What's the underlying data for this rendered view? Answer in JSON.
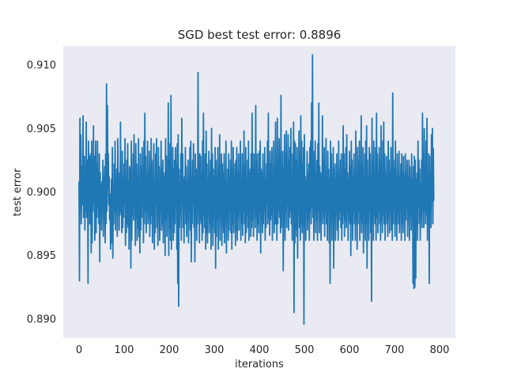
{
  "chart_data": {
    "type": "line",
    "title": "SGD best test error: 0.8896",
    "xlabel": "iterations",
    "ylabel": "test error",
    "xlim": [
      -35,
      835
    ],
    "ylim": [
      0.8885,
      0.9115
    ],
    "x_ticks": [
      0,
      100,
      200,
      300,
      400,
      500,
      600,
      700,
      800
    ],
    "x_tick_labels": [
      "0",
      "100",
      "200",
      "300",
      "400",
      "500",
      "600",
      "700",
      "800"
    ],
    "y_ticks": [
      0.89,
      0.895,
      0.9,
      0.905,
      0.91
    ],
    "y_tick_labels": [
      "0.890",
      "0.895",
      "0.900",
      "0.905",
      "0.910"
    ],
    "grid": false,
    "background": "#eaeaf2",
    "series": [
      {
        "color": "#1f77b4",
        "x_start": 0,
        "x_step": 1,
        "values": [
          0.9008,
          0.893,
          0.9058,
          0.8985,
          0.9045,
          0.8975,
          0.902,
          0.899,
          0.9012,
          0.906,
          0.898,
          0.9,
          0.9028,
          0.897,
          0.9016,
          0.8985,
          0.9055,
          0.898,
          0.9005,
          0.9025,
          0.8928,
          0.904,
          0.8995,
          0.9028,
          0.8975,
          0.901,
          0.903,
          0.8952,
          0.904,
          0.896,
          0.9025,
          0.8985,
          0.9052,
          0.8992,
          0.9028,
          0.8962,
          0.8998,
          0.904,
          0.8968,
          0.9022,
          0.898,
          0.904,
          0.8988,
          0.901,
          0.8975,
          0.903,
          0.8945,
          0.9015,
          0.8982,
          0.9005,
          0.897,
          0.9008,
          0.899,
          0.9025,
          0.8965,
          0.9012,
          0.8995,
          0.902,
          0.896,
          0.903,
          0.8975,
          0.9085,
          0.8985,
          0.9068,
          0.9002,
          0.903,
          0.899,
          0.9012,
          0.8978,
          0.8998,
          0.8955,
          0.898,
          0.901,
          0.896,
          0.9035,
          0.8948,
          0.9002,
          0.8975,
          0.9022,
          0.8985,
          0.904,
          0.897,
          0.901,
          0.899,
          0.9018,
          0.8965,
          0.9042,
          0.8995,
          0.9008,
          0.897,
          0.9015,
          0.8982,
          0.9055,
          0.8985,
          0.9002,
          0.8968,
          0.9032,
          0.8972,
          0.901,
          0.898,
          0.9022,
          0.8992,
          0.9042,
          0.8958,
          0.901,
          0.8968,
          0.9025,
          0.8975,
          0.9038,
          0.8972,
          0.9008,
          0.8955,
          0.902,
          0.8972,
          0.9018,
          0.894,
          0.904,
          0.8962,
          0.901,
          0.8982,
          0.903,
          0.8978,
          0.9045,
          0.8992,
          0.9008,
          0.8958,
          0.9038,
          0.898,
          0.9022,
          0.8962,
          0.9012,
          0.8972,
          0.9042,
          0.8965,
          0.9,
          0.8952,
          0.903,
          0.897,
          0.902,
          0.898,
          0.9035,
          0.8995,
          0.9015,
          0.896,
          0.904,
          0.8975,
          0.9062,
          0.8985,
          0.9028,
          0.8968,
          0.9012,
          0.8985,
          0.904,
          0.8975,
          0.9008,
          0.898,
          0.9032,
          0.8965,
          0.902,
          0.8975,
          0.9042,
          0.8982,
          0.9025,
          0.896,
          0.901,
          0.8998,
          0.9038,
          0.8955,
          0.9002,
          0.8968,
          0.903,
          0.899,
          0.9042,
          0.8972,
          0.901,
          0.8958,
          0.9035,
          0.898,
          0.902,
          0.8962,
          0.9008,
          0.8985,
          0.904,
          0.897,
          0.9018,
          0.8975,
          0.9025,
          0.896,
          0.9012,
          0.8982,
          0.9015,
          0.895,
          0.9042,
          0.8978,
          0.9028,
          0.8965,
          0.901,
          0.8985,
          0.907,
          0.895,
          0.9025,
          0.8972,
          0.9038,
          0.8962,
          0.9076,
          0.8955,
          0.9012,
          0.8978,
          0.9035,
          0.8962,
          0.9018,
          0.8968,
          0.9025,
          0.8975,
          0.9035,
          0.899,
          0.9022,
          0.8955,
          0.9038,
          0.8928,
          0.9045,
          0.891,
          0.9018,
          0.8972,
          0.9002,
          0.8985,
          0.903,
          0.8962,
          0.9058,
          0.8992,
          0.903,
          0.8972,
          0.901,
          0.896,
          0.9012,
          0.8985,
          0.9035,
          0.8975,
          0.902,
          0.8965,
          0.9008,
          0.8978,
          0.9025,
          0.896,
          0.901,
          0.8985,
          0.9035,
          0.897,
          0.904,
          0.8945,
          0.9012,
          0.8975,
          0.9025,
          0.899,
          0.9038,
          0.8972,
          0.901,
          0.8945,
          0.903,
          0.8985,
          0.9018,
          0.8962,
          0.9008,
          0.8975,
          0.9094,
          0.8985,
          0.9015,
          0.896,
          0.903,
          0.8978,
          0.9028,
          0.8975,
          0.9015,
          0.8962,
          0.904,
          0.8968,
          0.9062,
          0.8982,
          0.9008,
          0.8972,
          0.903,
          0.8955,
          0.9048,
          0.8968,
          0.9022,
          0.896,
          0.901,
          0.8985,
          0.9032,
          0.8968,
          0.9015,
          0.8975,
          0.9025,
          0.8955,
          0.905,
          0.8972,
          0.903,
          0.8958,
          0.9018,
          0.8982,
          0.9012,
          0.8968,
          0.9035,
          0.894,
          0.9025,
          0.8965,
          0.9012,
          0.8978,
          0.9035,
          0.8955,
          0.902,
          0.898,
          0.9045,
          0.8962,
          0.9008,
          0.899,
          0.903,
          0.8958,
          0.9022,
          0.8972,
          0.9015,
          0.8968,
          0.903,
          0.896,
          0.901,
          0.8975,
          0.904,
          0.8952,
          0.9008,
          0.898,
          0.9018,
          0.8962,
          0.903,
          0.897,
          0.9012,
          0.8985,
          0.9025,
          0.8968,
          0.904,
          0.8955,
          0.9018,
          0.8975,
          0.9035,
          0.8968,
          0.901,
          0.8985,
          0.9022,
          0.8958,
          0.9025,
          0.897,
          0.9035,
          0.8962,
          0.9015,
          0.898,
          0.903,
          0.897,
          0.9012,
          0.8985,
          0.904,
          0.8962,
          0.901,
          0.8975,
          0.903,
          0.8966,
          0.9018,
          0.8985,
          0.9048,
          0.8975,
          0.902,
          0.896,
          0.9035,
          0.8968,
          0.901,
          0.8982,
          0.9025,
          0.8972,
          0.904,
          0.8962,
          0.9015,
          0.8988,
          0.9018,
          0.8965,
          0.903,
          0.8972,
          0.9062,
          0.8978,
          0.9018,
          0.8965,
          0.903,
          0.8992,
          0.901,
          0.8972,
          0.9068,
          0.898,
          0.9025,
          0.8962,
          0.903,
          0.8975,
          0.9015,
          0.8968,
          0.9032,
          0.8985,
          0.904,
          0.8952,
          0.9018,
          0.8978,
          0.9015,
          0.8968,
          0.903,
          0.8975,
          0.9012,
          0.8985,
          0.9035,
          0.8962,
          0.901,
          0.8972,
          0.9022,
          0.899,
          0.904,
          0.8975,
          0.9062,
          0.898,
          0.9015,
          0.8966,
          0.9032,
          0.8978,
          0.9022,
          0.8982,
          0.9035,
          0.8962,
          0.9012,
          0.899,
          0.904,
          0.8968,
          0.902,
          0.8975,
          0.9055,
          0.8975,
          0.901,
          0.8962,
          0.9058,
          0.8975,
          0.9025,
          0.8985,
          0.9042,
          0.898,
          0.903,
          0.8968,
          0.9076,
          0.8972,
          0.901,
          0.8985,
          0.9032,
          0.8938,
          0.9018,
          0.8978,
          0.9045,
          0.8962,
          0.903,
          0.8985,
          0.9048,
          0.8972,
          0.9015,
          0.899,
          0.9045,
          0.897,
          0.9025,
          0.898,
          0.9035,
          0.8985,
          0.905,
          0.8975,
          0.9002,
          0.8962,
          0.903,
          0.8988,
          0.9055,
          0.8905,
          0.904,
          0.896,
          0.9038,
          0.897,
          0.9025,
          0.8965,
          0.9035,
          0.8948,
          0.9015,
          0.8985,
          0.9048,
          0.8972,
          0.903,
          0.8962,
          0.906,
          0.8975,
          0.904,
          0.8968,
          0.9022,
          0.8982,
          0.9035,
          0.8896,
          0.9045,
          0.8978,
          0.9012,
          0.8962,
          0.9008,
          0.8985,
          0.9032,
          0.897,
          0.9015,
          0.8978,
          0.9022,
          0.8962,
          0.9035,
          0.8985,
          0.904,
          0.8975,
          0.907,
          0.8988,
          0.9108,
          0.898,
          0.9012,
          0.8962,
          0.9032,
          0.8985,
          0.904,
          0.8968,
          0.9015,
          0.8978,
          0.9025,
          0.8962,
          0.9038,
          0.8985,
          0.907,
          0.8968,
          0.902,
          0.8978,
          0.9015,
          0.8962,
          0.9008,
          0.8985,
          0.906,
          0.8975,
          0.9025,
          0.898,
          0.9035,
          0.8965,
          0.9012,
          0.8985,
          0.9042,
          0.8975,
          0.901,
          0.8962,
          0.9032,
          0.8985,
          0.9018,
          0.896,
          0.901,
          0.8928,
          0.904,
          0.8975,
          0.903,
          0.8962,
          0.9012,
          0.8985,
          0.9035,
          0.894,
          0.9018,
          0.8975,
          0.9022,
          0.8962,
          0.901,
          0.8985,
          0.903,
          0.897,
          0.9015,
          0.8962,
          0.904,
          0.8978,
          0.9012,
          0.8985,
          0.9025,
          0.8972,
          0.903,
          0.8962,
          0.9008,
          0.8975,
          0.9052,
          0.8982,
          0.903,
          0.8965,
          0.9018,
          0.8978,
          0.9035,
          0.8972,
          0.9045,
          0.8985,
          0.9015,
          0.8962,
          0.901,
          0.8978,
          0.9032,
          0.8975,
          0.902,
          0.895,
          0.904,
          0.8975,
          0.9025,
          0.8962,
          0.9012,
          0.8985,
          0.903,
          0.8975,
          0.9018,
          0.8962,
          0.9048,
          0.8978,
          0.901,
          0.8955,
          0.9035,
          0.8975,
          0.9025,
          0.8985,
          0.904,
          0.8962,
          0.9012,
          0.8978,
          0.906,
          0.8968,
          0.9022,
          0.8975,
          0.9035,
          0.8952,
          0.901,
          0.8982,
          0.903,
          0.8962,
          0.904,
          0.8975,
          0.9052,
          0.894,
          0.9025,
          0.8978,
          0.9012,
          0.8962,
          0.9035,
          0.8985,
          0.903,
          0.8968,
          0.9015,
          0.8914,
          0.9058,
          0.8975,
          0.9025,
          0.8962,
          0.904,
          0.8982,
          0.901,
          0.8975,
          0.9035,
          0.8962,
          0.9062,
          0.898,
          0.903,
          0.8968,
          0.9015,
          0.8985,
          0.9035,
          0.8975,
          0.9025,
          0.8962,
          0.9052,
          0.8978,
          0.9012,
          0.8968,
          0.904,
          0.8982,
          0.9055,
          0.8975,
          0.903,
          0.8962,
          0.9015,
          0.8985,
          0.9028,
          0.8975,
          0.9012,
          0.8965,
          0.904,
          0.898,
          0.9025,
          0.8968,
          0.9015,
          0.8985,
          0.9035,
          0.897,
          0.901,
          0.8962,
          0.9078,
          0.8975,
          0.9025,
          0.899,
          0.9018,
          0.8965,
          0.904,
          0.8975,
          0.9012,
          0.8962,
          0.903,
          0.8985,
          0.901,
          0.8975,
          0.9032,
          0.8968,
          0.9012,
          0.8988,
          0.9022,
          0.8962,
          0.903,
          0.8975,
          0.9015,
          0.8968,
          0.9028,
          0.8982,
          0.9012,
          0.8962,
          0.903,
          0.8978,
          0.9015,
          0.8988,
          0.9025,
          0.8965,
          0.9012,
          0.8978,
          0.9025,
          0.8962,
          0.902,
          0.8982,
          0.901,
          0.897,
          0.903,
          0.8985,
          0.901,
          0.8928,
          0.902,
          0.8924,
          0.9028,
          0.8925,
          0.9025,
          0.8932,
          0.901,
          0.8975,
          0.9015,
          0.8962,
          0.904,
          0.899,
          0.9025,
          0.8975,
          0.9018,
          0.8962,
          0.9005,
          0.898,
          0.9025,
          0.8972,
          0.9062,
          0.8985,
          0.903,
          0.8972,
          0.905,
          0.8985,
          0.9012,
          0.8975,
          0.904,
          0.8982,
          0.9058,
          0.8962,
          0.9005,
          0.8975,
          0.903,
          0.8928,
          0.9028,
          0.8985,
          0.9015,
          0.8972,
          0.9045,
          0.8992,
          0.905,
          0.8975,
          0.9034,
          0.8993
        ]
      }
    ]
  }
}
